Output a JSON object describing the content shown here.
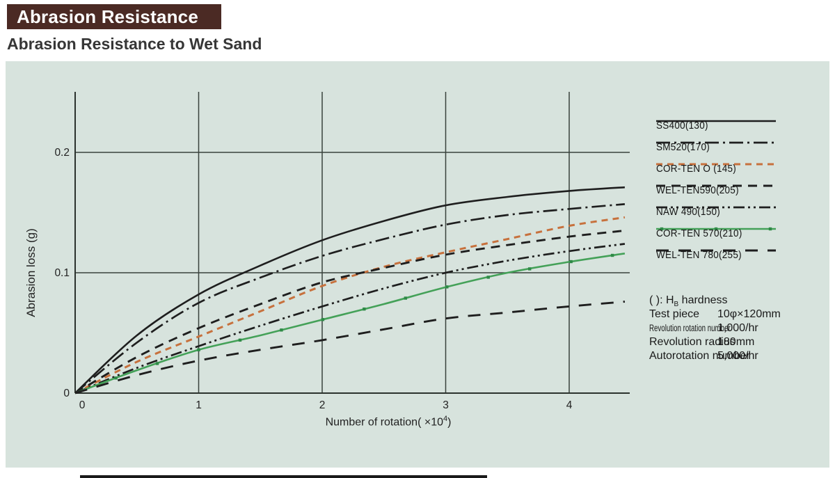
{
  "page": {
    "title": "Abrasion Resistance",
    "subtitle": "Abrasion Resistance to Wet Sand"
  },
  "colors": {
    "title_bg": "#4b2a24",
    "panel_bg": "#d7e3dd",
    "grid": "#39423c",
    "axis": "#2b322d",
    "black_line": "#1e1e1e",
    "orange_line": "#c7713d",
    "green_line": "#44a158",
    "green_marker": "#2f8a47",
    "text": "#222222",
    "bottom_strip": "#1a1a1a"
  },
  "chart_data": {
    "type": "line",
    "title": "Abrasion Resistance to Wet Sand",
    "xlabel_text": "Number of rotation(   ×10",
    "xlabel_sup": "4",
    "xlabel_close": ")",
    "ylabel": "Abrasion loss (g)",
    "xlim": [
      0,
      4.5
    ],
    "ylim": [
      0,
      0.25
    ],
    "x_ticks": [
      0,
      1,
      2,
      3,
      4
    ],
    "y_ticks": [
      0,
      0.1,
      0.2
    ],
    "y_tick_labels": [
      "0",
      "0.1",
      "0.2"
    ],
    "grid": true,
    "legend_position": "right",
    "x": [
      0,
      0.5,
      1,
      1.5,
      2,
      2.5,
      3,
      3.5,
      4,
      4.45
    ],
    "series": [
      {
        "name": "SS400(130)",
        "color": "#1e1e1e",
        "line_style": "solid",
        "values": [
          0,
          0.048,
          0.082,
          0.106,
          0.127,
          0.143,
          0.156,
          0.163,
          0.168,
          0.171
        ]
      },
      {
        "name": "SM520(170)",
        "color": "#1e1e1e",
        "line_style": "dash-dot",
        "values": [
          0,
          0.042,
          0.075,
          0.096,
          0.114,
          0.128,
          0.14,
          0.148,
          0.153,
          0.157
        ]
      },
      {
        "name": "COR-TEN O (145)",
        "color": "#c7713d",
        "line_style": "dashed-short",
        "values": [
          0,
          0.026,
          0.047,
          0.068,
          0.089,
          0.105,
          0.117,
          0.128,
          0.139,
          0.146
        ]
      },
      {
        "name": "WEL-TEN590(205)",
        "color": "#1e1e1e",
        "line_style": "dashed",
        "values": [
          0,
          0.03,
          0.054,
          0.074,
          0.092,
          0.104,
          0.115,
          0.123,
          0.13,
          0.135
        ]
      },
      {
        "name": "NAW 490(150)",
        "color": "#1e1e1e",
        "line_style": "dash-dot-dot",
        "values": [
          0,
          0.021,
          0.039,
          0.056,
          0.072,
          0.087,
          0.1,
          0.11,
          0.118,
          0.124
        ]
      },
      {
        "name": "COR-TEN 570(210)",
        "color": "#44a158",
        "line_style": "solid-marked",
        "values": [
          0,
          0.019,
          0.036,
          0.048,
          0.061,
          0.074,
          0.088,
          0.1,
          0.109,
          0.116
        ]
      },
      {
        "name": "WEL-TEN 780(255)",
        "color": "#1e1e1e",
        "line_style": "long-dash",
        "values": [
          0,
          0.015,
          0.027,
          0.036,
          0.044,
          0.053,
          0.062,
          0.067,
          0.072,
          0.076
        ]
      }
    ]
  },
  "info_box": {
    "hardness_pre": "(   ): H",
    "hardness_sub": "B",
    "hardness_post": " hardness",
    "rows": [
      {
        "label": "Test piece",
        "value": "10φ×120mm",
        "condensed": false
      },
      {
        "label": "Revolution rotation number",
        "value": "1,000/hr",
        "condensed": true
      },
      {
        "label": "Revolution radius",
        "value": "180mm",
        "condensed": false
      },
      {
        "label": "Autorotation number",
        "value": "5,000/hr",
        "condensed": false
      }
    ]
  }
}
